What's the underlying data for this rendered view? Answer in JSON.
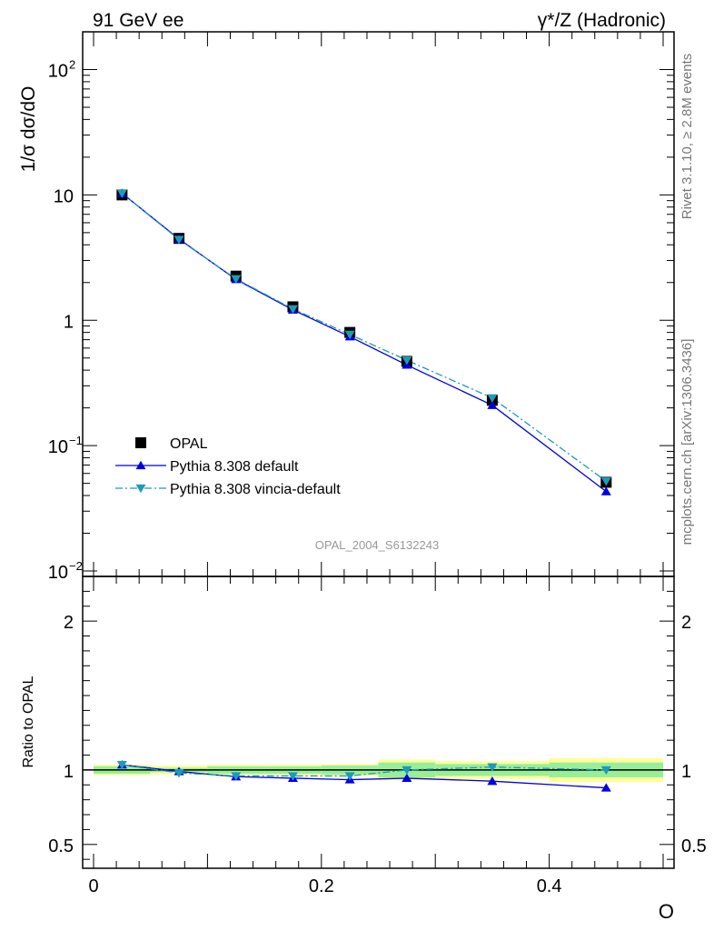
{
  "header": {
    "left": "91 GeV ee",
    "right": "γ*/Z (Hadronic)"
  },
  "side_labels": {
    "rivet": "Rivet 3.1.10, ≥ 2.8M events",
    "mcplots": "mcplots.cern.ch [arXiv:1306.3436]"
  },
  "analysis_id": "OPAL_2004_S6132243",
  "colors": {
    "data": "#000000",
    "default": "#0000dd",
    "vincia": "#1c9bb8",
    "band_yellow": "#ffff99",
    "band_green": "#99ee99"
  },
  "chart_data": [
    {
      "type": "line",
      "panel": "main",
      "ylabel": "1/σ dσ/dO",
      "yscale": "log",
      "ylim": [
        0.01,
        200
      ],
      "xlim": [
        0,
        0.5
      ],
      "yticks": [
        {
          "v": 100,
          "mant": "10",
          "exp": "2"
        },
        {
          "v": 10,
          "mant": "10",
          "exp": ""
        },
        {
          "v": 1,
          "mant": "1",
          "exp": ""
        },
        {
          "v": 0.1,
          "mant": "10",
          "exp": "−1"
        },
        {
          "v": 0.01,
          "mant": "10",
          "exp": "−2"
        }
      ],
      "legend_position": "lower-left",
      "x": [
        0.025,
        0.075,
        0.125,
        0.175,
        0.225,
        0.275,
        0.35,
        0.45
      ],
      "series": [
        {
          "name": "OPAL",
          "key": "data",
          "marker": "square",
          "values": [
            10.0,
            4.5,
            2.25,
            1.28,
            0.8,
            0.47,
            0.23,
            0.051
          ]
        },
        {
          "name": "Pythia 8.308 default",
          "key": "default",
          "marker": "triangle-up",
          "values": [
            10.3,
            4.45,
            2.12,
            1.21,
            0.74,
            0.44,
            0.21,
            0.043
          ]
        },
        {
          "name": "Pythia 8.308 vincia-default",
          "key": "vincia",
          "marker": "triangle-down",
          "values": [
            10.3,
            4.4,
            2.14,
            1.23,
            0.77,
            0.48,
            0.24,
            0.052
          ]
        }
      ]
    },
    {
      "type": "line",
      "panel": "ratio",
      "ylabel": "Ratio to OPAL",
      "xlabel": "O",
      "ylim": [
        0.34,
        2.3
      ],
      "xlim": [
        0,
        0.5
      ],
      "yticks": [
        2,
        1,
        0.5
      ],
      "ytick_labels": [
        "2",
        "1",
        "0.5"
      ],
      "xticks": [
        0,
        0.2,
        0.4
      ],
      "xtick_labels": [
        "0",
        "0.2",
        "0.4"
      ],
      "bins": [
        [
          0,
          0.05
        ],
        [
          0.05,
          0.1
        ],
        [
          0.1,
          0.15
        ],
        [
          0.15,
          0.2
        ],
        [
          0.2,
          0.25
        ],
        [
          0.25,
          0.3
        ],
        [
          0.3,
          0.4
        ],
        [
          0.4,
          0.5
        ]
      ],
      "band_green": [
        0.025,
        0.015,
        0.025,
        0.025,
        0.03,
        0.05,
        0.04,
        0.05
      ],
      "band_yellow": [
        0.035,
        0.03,
        0.035,
        0.035,
        0.04,
        0.07,
        0.06,
        0.08
      ],
      "x": [
        0.025,
        0.075,
        0.125,
        0.175,
        0.225,
        0.275,
        0.35,
        0.45
      ],
      "series": [
        {
          "name": "Pythia 8.308 default",
          "key": "default",
          "values": [
            1.035,
            0.99,
            0.955,
            0.945,
            0.935,
            0.945,
            0.925,
            0.88
          ]
        },
        {
          "name": "Pythia 8.308 vincia-default",
          "key": "vincia",
          "values": [
            1.035,
            0.98,
            0.96,
            0.96,
            0.96,
            1.0,
            1.02,
            1.0
          ]
        }
      ]
    }
  ]
}
